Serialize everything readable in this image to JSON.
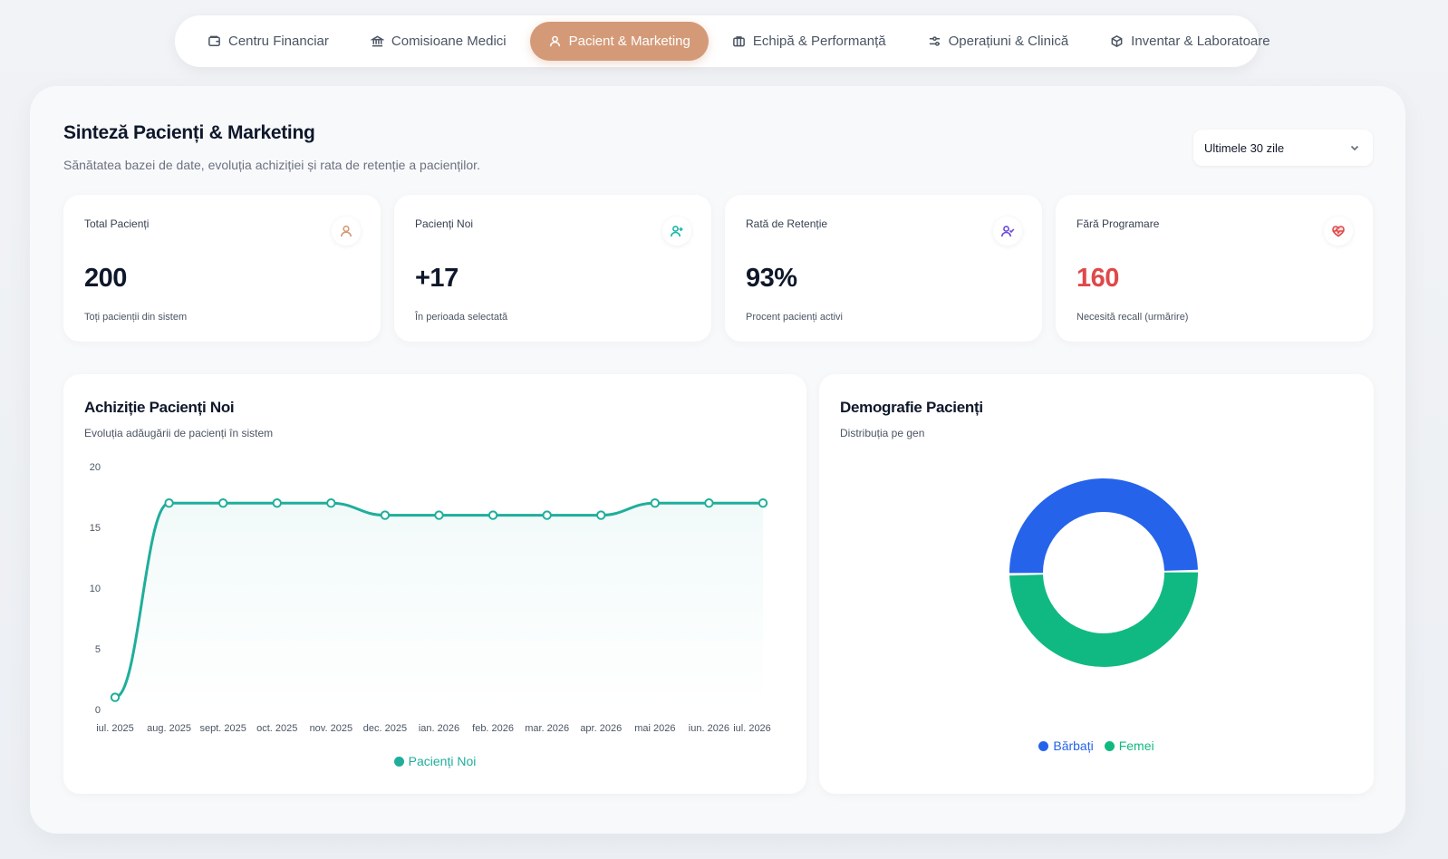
{
  "nav": {
    "tabs": [
      {
        "label": "Centru Financiar",
        "icon": "wallet-icon",
        "active": false
      },
      {
        "label": "Comisioane Medici",
        "icon": "bank-icon",
        "active": false
      },
      {
        "label": "Pacient & Marketing",
        "icon": "user-icon",
        "active": true
      },
      {
        "label": "Echipă & Performanță",
        "icon": "briefcase-icon",
        "active": false
      },
      {
        "label": "Operațiuni & Clinică",
        "icon": "sliders-icon",
        "active": false
      },
      {
        "label": "Inventar & Laboratoare",
        "icon": "box-icon",
        "active": false
      }
    ]
  },
  "header": {
    "title": "Sinteză Pacienți & Marketing",
    "subtitle": "Sănătatea bazei de date, evoluția achiziției și rata de retenție a pacienților.",
    "range": "Ultimele 30 zile"
  },
  "kpis": [
    {
      "label": "Total Pacienți",
      "value": "200",
      "desc": "Toți pacienții din sistem",
      "icon": "user-icon",
      "color": "#d49a78"
    },
    {
      "label": "Pacienți Noi",
      "value": "+17",
      "desc": "În perioada selectată",
      "icon": "user-plus-icon",
      "color": "#14b8a6"
    },
    {
      "label": "Rată de Retenție",
      "value": "93%",
      "desc": "Procent pacienți activi",
      "icon": "user-check-icon",
      "color": "#6d4bd8"
    },
    {
      "label": "Fără Programare",
      "value": "160",
      "desc": "Necesită recall (urmărire)",
      "icon": "heart-pulse-icon",
      "color": "#e04848"
    }
  ],
  "acquisition": {
    "title": "Achiziție Pacienți Noi",
    "subtitle": "Evoluția adăugării de pacienți în sistem"
  },
  "demographics": {
    "title": "Demografie Pacienți",
    "subtitle": "Distribuția pe gen"
  },
  "chart_data": [
    {
      "type": "line",
      "title": "Achiziție Pacienți Noi",
      "categories": [
        "iul. 2025",
        "aug. 2025",
        "sept. 2025",
        "oct. 2025",
        "nov. 2025",
        "dec. 2025",
        "ian. 2026",
        "feb. 2026",
        "mar. 2026",
        "apr. 2026",
        "mai 2026",
        "iun. 2026",
        "iul. 2026"
      ],
      "series": [
        {
          "name": "Pacienți Noi",
          "color": "#1fae9b",
          "values": [
            1,
            17,
            17,
            17,
            17,
            16,
            16,
            16,
            16,
            16,
            17,
            17,
            17
          ]
        }
      ],
      "ylim": [
        0,
        20
      ],
      "yticks": [
        0,
        5,
        10,
        15,
        20
      ],
      "grid": false,
      "legend": "bottom"
    },
    {
      "type": "pie",
      "title": "Demografie Pacienți",
      "donut": true,
      "slices": [
        {
          "name": "Bărbați",
          "value": 50,
          "color": "#2563eb"
        },
        {
          "name": "Femei",
          "value": 50,
          "color": "#10b981"
        }
      ],
      "legend": "bottom"
    }
  ]
}
